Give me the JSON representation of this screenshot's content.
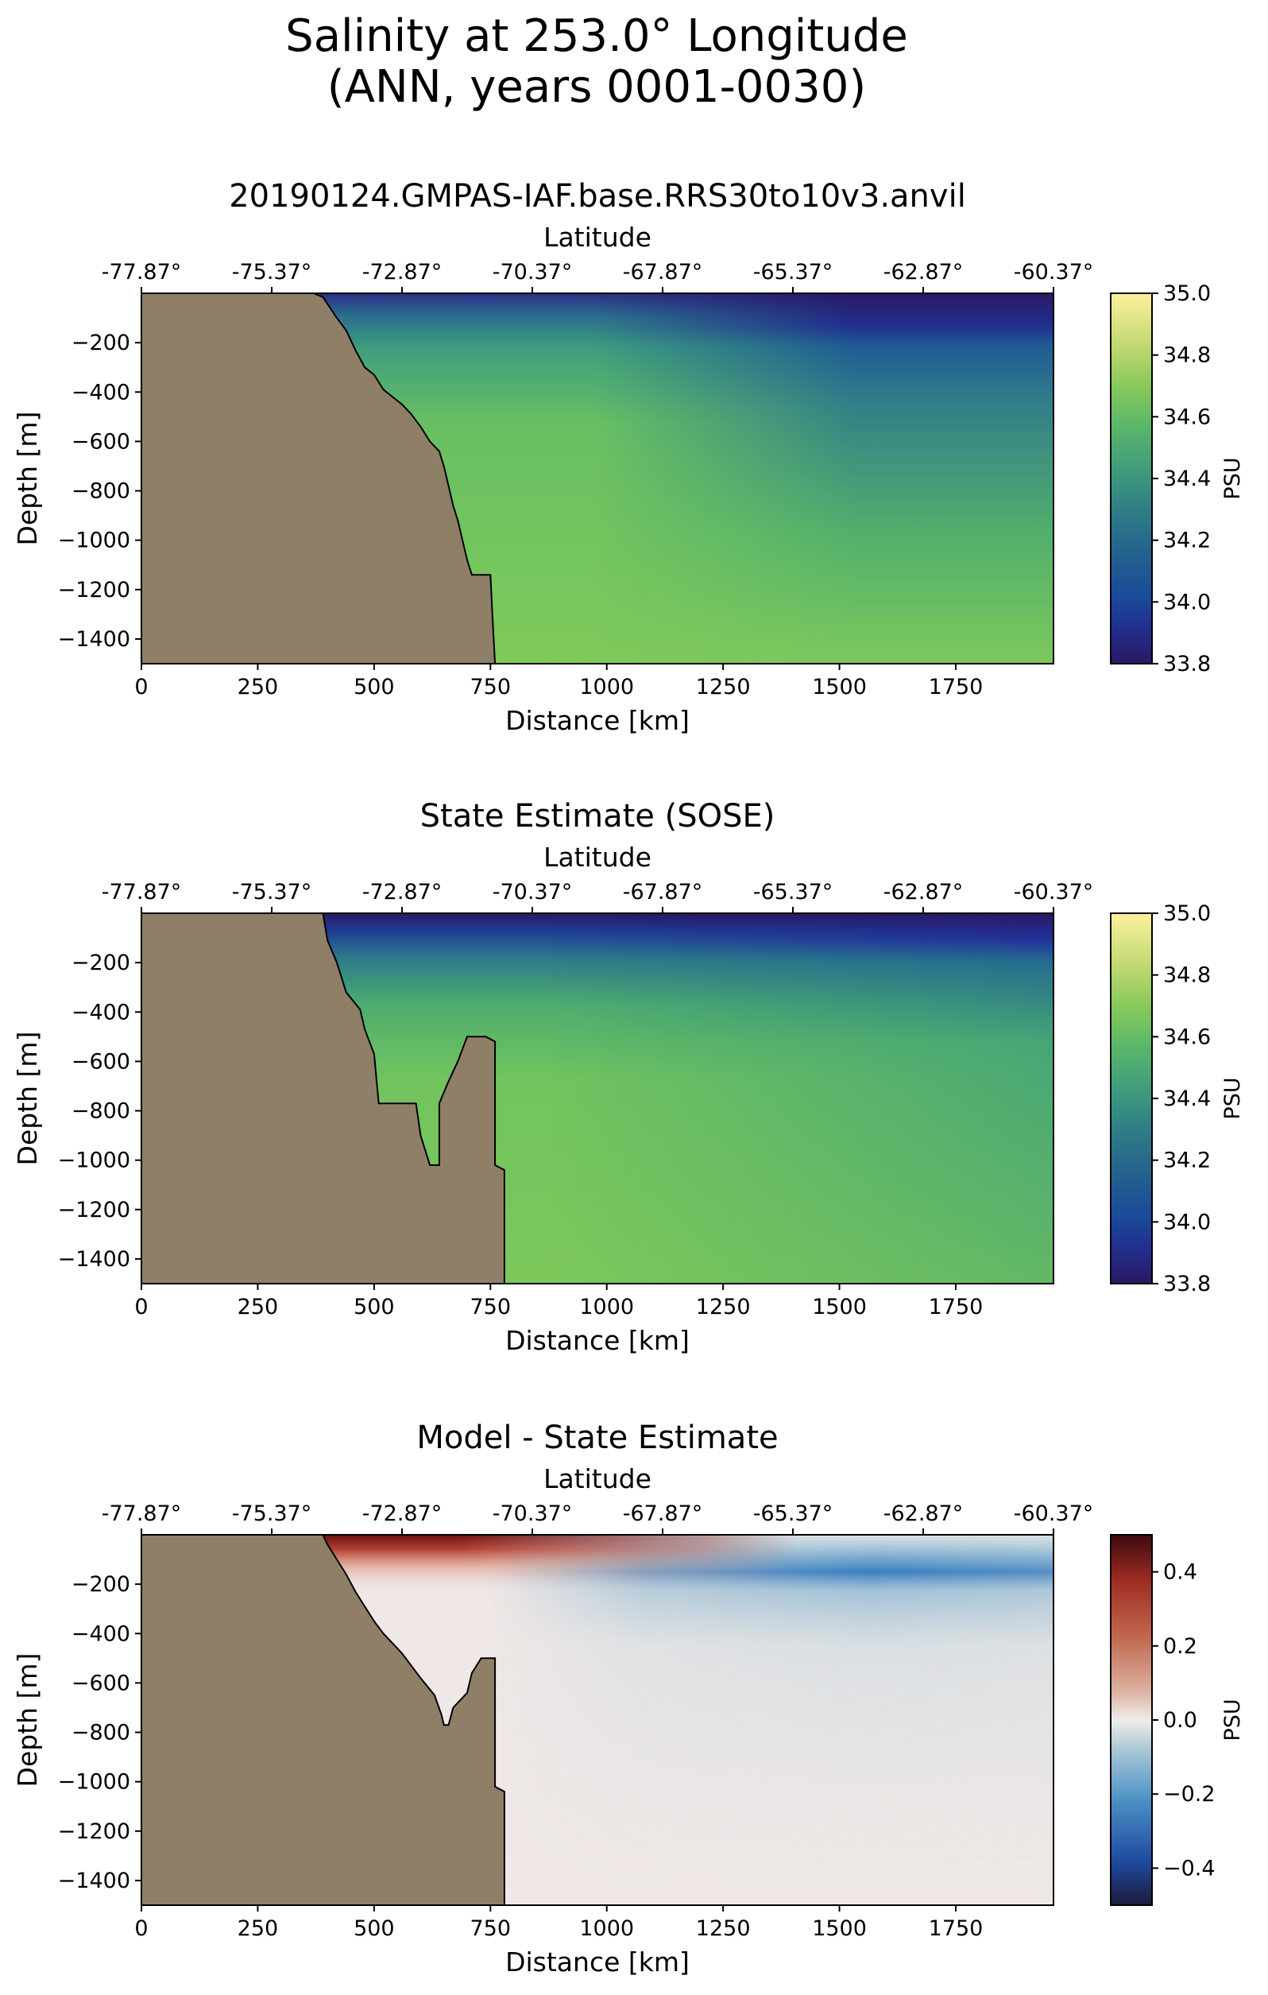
{
  "figure": {
    "title_line1": "Salinity at 253.0° Longitude",
    "title_line2": "(ANN, years 0001-0030)"
  },
  "chart_data": [
    {
      "type": "heatmap",
      "title": "20190124.GMPAS-IAF.base.RRS30to10v3.anvil",
      "xlabel": "Distance [km]",
      "ylabel": "Depth [m]",
      "top_xlabel": "Latitude",
      "xlim": [
        0,
        1960
      ],
      "ylim": [
        -1500,
        0
      ],
      "xticks": [
        "0",
        "250",
        "500",
        "750",
        "1000",
        "1250",
        "1500",
        "1750"
      ],
      "yticks": [
        "−200",
        "−400",
        "−600",
        "−800",
        "−1000",
        "−1200",
        "−1400"
      ],
      "top_ticks": [
        "-77.87°",
        "-75.37°",
        "-72.87°",
        "-70.37°",
        "-67.87°",
        "-65.37°",
        "-62.87°",
        "-60.37°"
      ],
      "colorbar": {
        "label": "PSU",
        "min": 33.8,
        "max": 35.0,
        "ticks": [
          "35.0",
          "34.8",
          "34.6",
          "34.4",
          "34.2",
          "34.0",
          "33.8"
        ],
        "colormap": "haline"
      },
      "bathymetry_km_m": [
        [
          370,
          0
        ],
        [
          390,
          -15
        ],
        [
          420,
          -100
        ],
        [
          440,
          -150
        ],
        [
          460,
          -230
        ],
        [
          480,
          -300
        ],
        [
          500,
          -330
        ],
        [
          520,
          -390
        ],
        [
          540,
          -420
        ],
        [
          560,
          -450
        ],
        [
          580,
          -490
        ],
        [
          600,
          -540
        ],
        [
          620,
          -600
        ],
        [
          640,
          -640
        ],
        [
          650,
          -700
        ],
        [
          660,
          -780
        ],
        [
          670,
          -860
        ],
        [
          680,
          -920
        ],
        [
          690,
          -1000
        ],
        [
          700,
          -1080
        ],
        [
          710,
          -1140
        ],
        [
          750,
          -1140
        ],
        [
          755,
          -1330
        ],
        [
          760,
          -1500
        ]
      ],
      "fresh_surface_cap": "surface salinity ≈ 33.8–34.0 PSU, thickening offshore to ~250 m beyond 1250 km",
      "deep_salinity": 34.6
    },
    {
      "type": "heatmap",
      "title": "State Estimate (SOSE)",
      "xlabel": "Distance [km]",
      "ylabel": "Depth [m]",
      "top_xlabel": "Latitude",
      "xlim": [
        0,
        1960
      ],
      "ylim": [
        -1500,
        0
      ],
      "xticks": [
        "0",
        "250",
        "500",
        "750",
        "1000",
        "1250",
        "1500",
        "1750"
      ],
      "yticks": [
        "−200",
        "−400",
        "−600",
        "−800",
        "−1000",
        "−1200",
        "−1400"
      ],
      "top_ticks": [
        "-77.87°",
        "-75.37°",
        "-72.87°",
        "-70.37°",
        "-67.87°",
        "-65.37°",
        "-62.87°",
        "-60.37°"
      ],
      "colorbar": {
        "label": "PSU",
        "min": 33.8,
        "max": 35.0,
        "ticks": [
          "35.0",
          "34.8",
          "34.6",
          "34.4",
          "34.2",
          "34.0",
          "33.8"
        ],
        "colormap": "haline"
      },
      "bathymetry_km_m": [
        [
          390,
          0
        ],
        [
          400,
          -110
        ],
        [
          420,
          -200
        ],
        [
          440,
          -320
        ],
        [
          470,
          -390
        ],
        [
          480,
          -470
        ],
        [
          500,
          -570
        ],
        [
          510,
          -770
        ],
        [
          590,
          -770
        ],
        [
          600,
          -900
        ],
        [
          620,
          -1020
        ],
        [
          640,
          -1020
        ],
        [
          640,
          -770
        ],
        [
          660,
          -680
        ],
        [
          680,
          -600
        ],
        [
          700,
          -500
        ],
        [
          730,
          -500
        ],
        [
          740,
          -500
        ],
        [
          760,
          -520
        ],
        [
          760,
          -1020
        ],
        [
          780,
          -1040
        ],
        [
          780,
          -1500
        ]
      ],
      "fresh_surface_cap": "surface salinity ≈ 33.8–34.0 PSU in upper ~150 m",
      "deep_salinity": 34.6
    },
    {
      "type": "heatmap",
      "title": "Model - State Estimate",
      "xlabel": "Distance [km]",
      "ylabel": "Depth [m]",
      "top_xlabel": "Latitude",
      "xlim": [
        0,
        1960
      ],
      "ylim": [
        -1500,
        0
      ],
      "xticks": [
        "0",
        "250",
        "500",
        "750",
        "1000",
        "1250",
        "1500",
        "1750"
      ],
      "yticks": [
        "−200",
        "−400",
        "−600",
        "−800",
        "−1000",
        "−1200",
        "−1400"
      ],
      "top_ticks": [
        "-77.87°",
        "-75.37°",
        "-72.87°",
        "-70.37°",
        "-67.87°",
        "-65.37°",
        "-62.87°",
        "-60.37°"
      ],
      "colorbar": {
        "label": "PSU",
        "min": -0.5,
        "max": 0.5,
        "ticks": [
          "0.4",
          "0.2",
          "0.0",
          "−0.2",
          "−0.4"
        ],
        "colormap": "balance"
      },
      "bathymetry_km_m": [
        [
          390,
          0
        ],
        [
          400,
          -40
        ],
        [
          420,
          -100
        ],
        [
          440,
          -160
        ],
        [
          460,
          -230
        ],
        [
          480,
          -290
        ],
        [
          500,
          -350
        ],
        [
          520,
          -400
        ],
        [
          540,
          -440
        ],
        [
          560,
          -480
        ],
        [
          580,
          -530
        ],
        [
          600,
          -580
        ],
        [
          630,
          -650
        ],
        [
          645,
          -730
        ],
        [
          650,
          -770
        ],
        [
          660,
          -770
        ],
        [
          670,
          -700
        ],
        [
          700,
          -640
        ],
        [
          710,
          -560
        ],
        [
          730,
          -500
        ],
        [
          760,
          -500
        ],
        [
          760,
          -1020
        ],
        [
          780,
          -1040
        ],
        [
          780,
          -1500
        ]
      ],
      "anomaly_pattern": "positive (red) ~0.4+ near surface 400–1250 km; negative (blue) ~−0.2 at 100–250 m depth beyond 1250 km"
    }
  ]
}
